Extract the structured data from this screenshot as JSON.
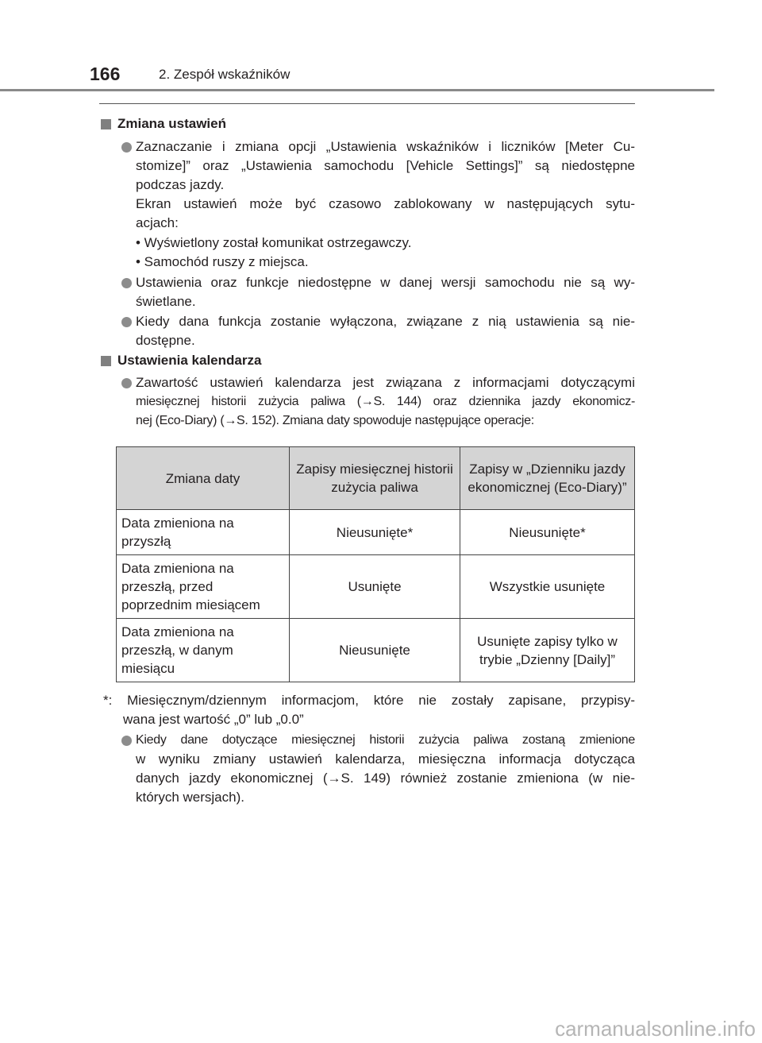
{
  "header": {
    "page_number": "166",
    "chapter": "2. Zespół wskaźników"
  },
  "sections": [
    {
      "heading": "Zmiana ustawień"
    },
    {
      "heading": "Ustawienia kalendarza"
    }
  ],
  "s1": {
    "b1": [
      "Zaznaczanie i zmiana opcji „Ustawienia wskaźników i liczników [Meter Cu-",
      "stomize]” oraz „Ustawienia samochodu [Vehicle Settings]” są niedostępne",
      "podczas jazdy.",
      "Ekran ustawień może być czasowo zablokowany w następujących sytu-",
      "acjach:"
    ],
    "sub": [
      "• Wyświetlony został komunikat ostrzegawczy.",
      "• Samochód ruszy z miejsca."
    ],
    "b2": [
      "Ustawienia oraz funkcje niedostępne w danej wersji samochodu nie są wy-",
      "świetlane."
    ],
    "b3": [
      "Kiedy dana funkcja zostanie wyłączona, związane z nią ustawienia są nie-",
      "dostępne."
    ]
  },
  "s2": {
    "b1": [
      "Zawartość ustawień kalendarza jest związana z informacjami dotyczącymi",
      "miesięcznej historii zużycia paliwa (→S. 144) oraz dziennika jazdy ekonomicz-",
      "nej (Eco-Diary) (→S. 152). Zmiana daty spowoduje następujące operacje:"
    ],
    "table": {
      "headers": [
        "Zmiana daty",
        "Zapisy miesięcznej historii zużycia paliwa",
        "Zapisy w „Dzienniku jazdy ekonomicznej (Eco-Diary)”"
      ],
      "rows": [
        [
          "Data zmieniona na przyszłą",
          "Nieusunięte*",
          "Nieusunięte*"
        ],
        [
          "Data zmieniona na przeszłą, przed poprzednim miesiącem",
          "Usunięte",
          "Wszystkie usunięte"
        ],
        [
          "Data zmieniona na przeszłą, w danym miesiącu",
          "Nieusunięte",
          "Usunięte zapisy tylko w trybie „Dzienny [Daily]”"
        ]
      ]
    },
    "footnote": [
      "*: Miesięcznym/dziennym informacjom, które nie zostały zapisane, przypisy-",
      "wana jest wartość „0” lub „0.0”"
    ],
    "b2": [
      "Kiedy dane dotyczące miesięcznej historii zużycia paliwa zostaną zmienione",
      "w wyniku zmiany ustawień kalendarza, miesięczna informacja dotycząca",
      "danych jazdy ekonomicznej (→S. 149) również zostanie zmieniona (w nie-",
      "których wersjach)."
    ]
  },
  "watermark": "carmanualsonline.info"
}
